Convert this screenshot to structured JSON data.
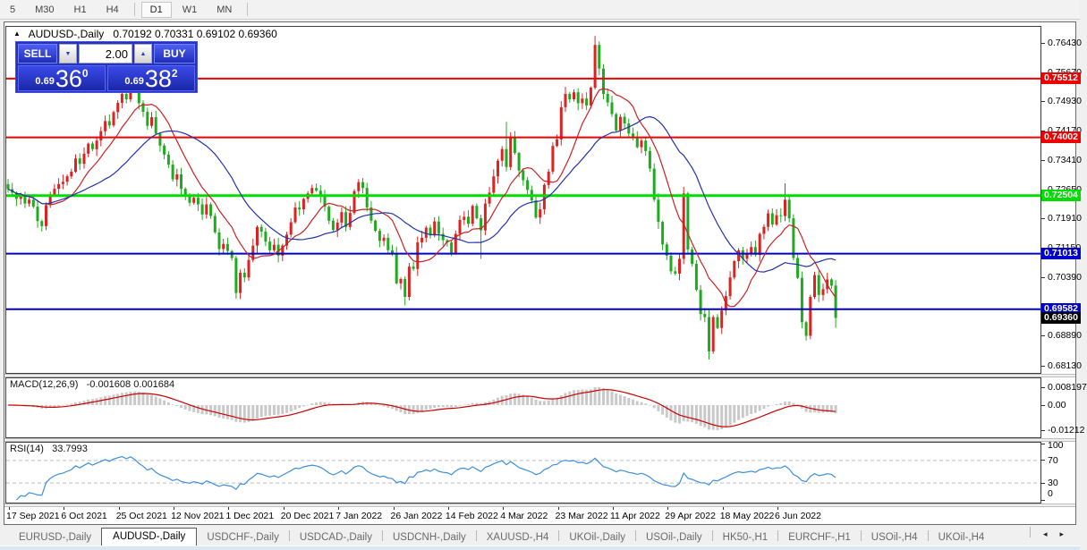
{
  "icons": {
    "collapse": "▲",
    "spin_down": "▼",
    "spin_up": "▲",
    "tab_left": "◂",
    "tab_right": "▸"
  },
  "toolbar": {
    "timeframe_groups": [
      [
        "5",
        "M30",
        "H1",
        "H4"
      ],
      [
        "D1",
        "W1",
        "MN"
      ]
    ],
    "active_timeframe": "D1"
  },
  "chart": {
    "symbol": "AUDUSD-,Daily",
    "ohlc_text": "0.70192 0.70331 0.69102 0.69360",
    "trade_panel": {
      "sell_label": "SELL",
      "buy_label": "BUY",
      "volume": "2.00",
      "sell_price_prefix": "0.69",
      "sell_price_big": "36",
      "sell_price_sup": "0",
      "buy_price_prefix": "0.69",
      "buy_price_big": "38",
      "buy_price_sup": "2"
    }
  },
  "chart_data": {
    "type": "candlestick",
    "title": "AUDUSD-,Daily",
    "ohlc": {
      "open": 0.70192,
      "high": 0.70331,
      "low": 0.69102,
      "close": 0.6936
    },
    "ylim": [
      0.6795,
      0.7685
    ],
    "y_ticks": [
      0.7643,
      0.7567,
      0.7493,
      0.7417,
      0.7341,
      0.7265,
      0.7191,
      0.7115,
      0.7039,
      0.6889,
      0.6813
    ],
    "levels": [
      {
        "price": 0.75512,
        "label": "0.75512",
        "color": "#ee0000",
        "width": 2,
        "text": "#ffffff"
      },
      {
        "price": 0.74002,
        "label": "0.74002",
        "color": "#ee0000",
        "width": 2,
        "text": "#ffffff"
      },
      {
        "price": 0.72504,
        "label": "0.72504",
        "color": "#00dd00",
        "width": 3,
        "text": "#ffffff"
      },
      {
        "price": 0.71013,
        "label": "0.71013",
        "color": "#0000cc",
        "width": 2,
        "text": "#ffffff"
      },
      {
        "price": 0.69582,
        "label": "0.69582",
        "color": "#0000cc",
        "width": 2,
        "text": "#ffffff"
      }
    ],
    "current_price": {
      "value": 0.6936,
      "label": "0.69360",
      "bg": "#000000"
    },
    "first_open": 0.728,
    "closes": [
      0.7267,
      0.7258,
      0.7242,
      0.7252,
      0.723,
      0.724,
      0.7222,
      0.7185,
      0.7172,
      0.7226,
      0.7251,
      0.7268,
      0.728,
      0.7286,
      0.73,
      0.7312,
      0.7346,
      0.7332,
      0.7358,
      0.7384,
      0.737,
      0.7392,
      0.7416,
      0.7442,
      0.7431,
      0.7465,
      0.7489,
      0.7512,
      0.7498,
      0.7535,
      0.7518,
      0.7488,
      0.7466,
      0.743,
      0.7452,
      0.741,
      0.7379,
      0.7356,
      0.733,
      0.7292,
      0.7305,
      0.7268,
      0.725,
      0.7232,
      0.7245,
      0.7228,
      0.7202,
      0.7228,
      0.7198,
      0.7156,
      0.7113,
      0.7126,
      0.7108,
      0.709,
      0.7,
      0.7052,
      0.704,
      0.7085,
      0.7122,
      0.717,
      0.7158,
      0.7132,
      0.711,
      0.7124,
      0.7096,
      0.7122,
      0.715,
      0.7182,
      0.722,
      0.7215,
      0.7242,
      0.7256,
      0.727,
      0.7263,
      0.7248,
      0.7222,
      0.7186,
      0.7162,
      0.7181,
      0.7208,
      0.717,
      0.7206,
      0.7262,
      0.7285,
      0.727,
      0.722,
      0.7186,
      0.716,
      0.7134,
      0.7142,
      0.711,
      0.7102,
      0.7025,
      0.7036,
      0.699,
      0.7068,
      0.7062,
      0.713,
      0.7142,
      0.7168,
      0.7148,
      0.7184,
      0.7152,
      0.7136,
      0.713,
      0.7102,
      0.7152,
      0.7188,
      0.7196,
      0.7178,
      0.7224,
      0.7192,
      0.7161,
      0.723,
      0.7258,
      0.73,
      0.734,
      0.737,
      0.7324,
      0.74,
      0.736,
      0.7315,
      0.729,
      0.7265,
      0.7238,
      0.7194,
      0.7215,
      0.7278,
      0.7312,
      0.7378,
      0.7395,
      0.7478,
      0.7512,
      0.7498,
      0.7516,
      0.7488,
      0.75,
      0.7482,
      0.7528,
      0.7638,
      0.7577,
      0.7512,
      0.749,
      0.746,
      0.7418,
      0.7453,
      0.7436,
      0.741,
      0.7398,
      0.7375,
      0.7392,
      0.7365,
      0.732,
      0.724,
      0.7183,
      0.7125,
      0.7096,
      0.7056,
      0.705,
      0.7088,
      0.7256,
      0.7112,
      0.7075,
      0.7008,
      0.6946,
      0.6938,
      0.685,
      0.6938,
      0.691,
      0.6955,
      0.6992,
      0.704,
      0.7082,
      0.711,
      0.7088,
      0.7102,
      0.7118,
      0.7098,
      0.7152,
      0.717,
      0.7205,
      0.7176,
      0.72,
      0.7198,
      0.724,
      0.7192,
      0.709,
      0.7039,
      0.6925,
      0.689,
      0.699,
      0.7046,
      0.6995,
      0.701,
      0.7035,
      0.7019,
      0.6936
    ],
    "last_candle": [
      0.70192,
      0.70331,
      0.69102,
      0.6936
    ],
    "wick_overrides": {
      "29": [
        0.7555,
        null
      ],
      "54": [
        null,
        0.6985
      ],
      "94": [
        null,
        0.6968
      ],
      "112": [
        null,
        0.7088
      ],
      "118": [
        0.744,
        null
      ],
      "139": [
        0.7661,
        null
      ],
      "166": [
        null,
        0.6829
      ],
      "184": [
        0.7282,
        null
      ]
    },
    "date_labels": [
      "17 Sep 2021",
      "6 Oct 2021",
      "25 Oct 2021",
      "12 Nov 2021",
      "1 Dec 2021",
      "20 Dec 2021",
      "7 Jan 2022",
      "26 Jan 2022",
      "14 Feb 2022",
      "4 Mar 2022",
      "23 Mar 2022",
      "11 Apr 2022",
      "29 Apr 2022",
      "18 May 2022",
      "6 Jun 2022"
    ],
    "label_step": 13,
    "moving_averages": [
      {
        "period": 10,
        "color": "#cc2222"
      },
      {
        "period": 25,
        "color": "#2233aa"
      }
    ],
    "macd": {
      "label": "MACD(12,26,9)",
      "values_text": "-0.001608 0.001684",
      "axis_ticks": [
        {
          "v": 0.008197,
          "label": "0.008197"
        },
        {
          "v": 0,
          "label": "0.00"
        },
        {
          "v": -0.01212,
          "label": "-0.01212"
        }
      ],
      "hist_color": "#c9c9c9",
      "signal_color": "#cc0000"
    },
    "rsi": {
      "label": "RSI(14)",
      "value_text": "33.7993",
      "axis_ticks": [
        100,
        70,
        30,
        0
      ],
      "levels": [
        70,
        30
      ],
      "line_color": "#3d8ede"
    },
    "candle_colors": {
      "bull": "#dd2222",
      "bear": "#1faa1f"
    }
  },
  "tabs": {
    "items": [
      "EURUSD-,Daily",
      "AUDUSD-,Daily",
      "USDCHF-,Daily",
      "USDCAD-,Daily",
      "USDCNH-,Daily",
      "XAUUSD-,H4",
      "UKOil-,Daily",
      "USOil-,Daily",
      "HK50-,H1",
      "EURCHF-,H1",
      "USOil-,H4",
      "UKOil-,H4"
    ],
    "active_index": 1
  }
}
